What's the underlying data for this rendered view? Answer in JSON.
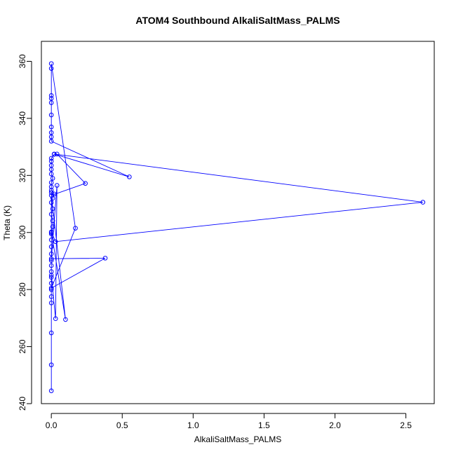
{
  "chart_data": {
    "type": "scatter",
    "title": "ATOM4 Southbound AlkaliSaltMass_PALMS",
    "xlabel": "AlkaliSaltMass_PALMS",
    "ylabel": "Theta (K)",
    "xlim": [
      -0.07,
      2.7
    ],
    "ylim": [
      240,
      367
    ],
    "xticks": [
      "0.0",
      "0.5",
      "1.0",
      "1.5",
      "2.0",
      "2.5"
    ],
    "xtick_values": [
      0,
      0.5,
      1,
      1.5,
      2,
      2.5
    ],
    "yticks": [
      "240",
      "260",
      "280",
      "300",
      "320",
      "340",
      "360"
    ],
    "ytick_values": [
      240,
      260,
      280,
      300,
      320,
      340,
      360
    ],
    "grid": false,
    "connected": true,
    "series_color": "#0000ff",
    "series": [
      {
        "points": [
          [
            0.0,
            244.5
          ],
          [
            0.0,
            253.6
          ],
          [
            0.0,
            264.8
          ],
          [
            0.0,
            275.3
          ],
          [
            0.0,
            277.5
          ],
          [
            0.0,
            280.0
          ],
          [
            0.0,
            282.2
          ],
          [
            0.0,
            284.3
          ],
          [
            0.0,
            286.3
          ],
          [
            0.0,
            288.4
          ],
          [
            0.0,
            290.2
          ],
          [
            0.0,
            292.5
          ],
          [
            0.0,
            295.0
          ],
          [
            0.0,
            297.4
          ],
          [
            0.0,
            299.5
          ],
          [
            0.01,
            302.0
          ],
          [
            0.01,
            304.1
          ],
          [
            0.0,
            306.4
          ],
          [
            0.01,
            308.3
          ],
          [
            0.0,
            310.5
          ],
          [
            0.01,
            312.0
          ],
          [
            0.02,
            313.5
          ],
          [
            0.0,
            314.8
          ],
          [
            0.0,
            316.0
          ],
          [
            0.0,
            317.5
          ],
          [
            0.01,
            319.0
          ],
          [
            0.0,
            320.5
          ],
          [
            0.0,
            322.1
          ],
          [
            0.0,
            323.5
          ],
          [
            0.0,
            325.0
          ],
          [
            0.0,
            326.0
          ],
          [
            0.02,
            327.4
          ],
          [
            0.04,
            327.5
          ],
          [
            0.24,
            317.2
          ],
          [
            0.0,
            313.0
          ],
          [
            0.1,
            269.5
          ],
          [
            0.0,
            300.2
          ],
          [
            0.03,
            296.8
          ],
          [
            2.62,
            310.6
          ],
          [
            0.02,
            327.5
          ],
          [
            0.55,
            319.5
          ],
          [
            0.0,
            332.0
          ],
          [
            0.0,
            333.5
          ],
          [
            0.0,
            335.0
          ],
          [
            0.0,
            337.0
          ],
          [
            0.0,
            341.2
          ],
          [
            0.0,
            345.5
          ],
          [
            0.0,
            347.0
          ],
          [
            0.0,
            348.0
          ],
          [
            0.0,
            357.5
          ],
          [
            0.0,
            359.2
          ],
          [
            0.17,
            301.5
          ],
          [
            0.0,
            280.5
          ],
          [
            0.38,
            291.0
          ],
          [
            0.0,
            290.8
          ],
          [
            0.04,
            316.5
          ],
          [
            0.03,
            269.8
          ],
          [
            0.0,
            285.0
          ],
          [
            0.0,
            300.0
          ],
          [
            0.0,
            314.0
          ]
        ]
      }
    ]
  }
}
